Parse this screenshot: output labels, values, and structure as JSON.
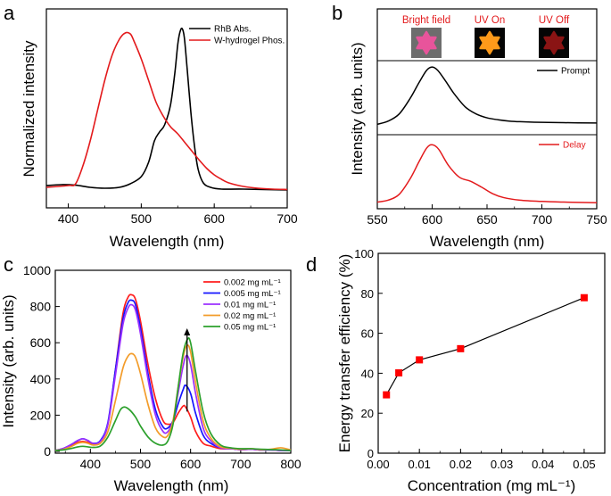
{
  "figure": {
    "panel_letters": [
      "a",
      "b",
      "c",
      "d"
    ]
  },
  "chart_data": [
    {
      "id": "a",
      "type": "line",
      "xlabel": "Wavelength (nm)",
      "ylabel": "Normalized intensity",
      "xlim": [
        370,
        700
      ],
      "ylim": [
        0,
        1.0
      ],
      "xticks": [
        400,
        500,
        600,
        700
      ],
      "show_yticks": false,
      "legend_position": "top-right",
      "series": [
        {
          "name": "RhB Abs.",
          "color": "#000000",
          "x": [
            370,
            390,
            410,
            430,
            450,
            470,
            485,
            500,
            510,
            518,
            525,
            532,
            540,
            546,
            550,
            553,
            556,
            559,
            563,
            568,
            573,
            578,
            585,
            595,
            610,
            640,
            700
          ],
          "y": [
            0.11,
            0.115,
            0.112,
            0.1,
            0.095,
            0.1,
            0.12,
            0.16,
            0.24,
            0.36,
            0.41,
            0.45,
            0.56,
            0.74,
            0.9,
            0.97,
            0.99,
            0.94,
            0.76,
            0.52,
            0.33,
            0.2,
            0.125,
            0.1,
            0.09,
            0.09,
            0.085
          ]
        },
        {
          "name": "W-hydrogel Phos.",
          "color": "#e31a1c",
          "x": [
            370,
            400,
            410,
            420,
            430,
            440,
            450,
            460,
            470,
            478,
            485,
            490,
            500,
            510,
            520,
            530,
            540,
            550,
            560,
            570,
            580,
            590,
            600,
            610,
            620,
            640,
            660,
            680,
            700
          ],
          "y": [
            0.1,
            0.11,
            0.12,
            0.22,
            0.36,
            0.53,
            0.7,
            0.84,
            0.93,
            0.965,
            0.96,
            0.92,
            0.82,
            0.7,
            0.58,
            0.5,
            0.44,
            0.4,
            0.35,
            0.3,
            0.25,
            0.205,
            0.17,
            0.145,
            0.125,
            0.105,
            0.095,
            0.09,
            0.088
          ]
        }
      ]
    },
    {
      "id": "b",
      "type": "line",
      "xlabel": "Wavelength (nm)",
      "ylabel": "Intensity (arb. units)",
      "xlim": [
        550,
        750
      ],
      "xticks": [
        550,
        600,
        650,
        700,
        750
      ],
      "show_yticks": false,
      "inset_labels": [
        "Bright field",
        "UV On",
        "UV Off"
      ],
      "inset_colors": [
        "#e8549b",
        "#ff9a1a",
        "#8a1414"
      ],
      "subplots": [
        {
          "name": "Prompt",
          "color": "#000000",
          "ylim": [
            0,
            1.0
          ],
          "x": [
            550,
            560,
            570,
            580,
            588,
            595,
            600,
            605,
            612,
            620,
            630,
            640,
            650,
            660,
            670,
            680,
            700,
            720,
            750
          ],
          "y": [
            0.05,
            0.1,
            0.21,
            0.45,
            0.69,
            0.88,
            0.93,
            0.88,
            0.72,
            0.52,
            0.32,
            0.21,
            0.15,
            0.12,
            0.1,
            0.09,
            0.08,
            0.075,
            0.07
          ]
        },
        {
          "name": "Delay",
          "color": "#e31a1c",
          "ylim": [
            0,
            1.0
          ],
          "x": [
            550,
            560,
            570,
            580,
            588,
            595,
            600,
            606,
            615,
            625,
            635,
            645,
            655,
            665,
            680,
            700,
            720,
            750
          ],
          "y": [
            0.02,
            0.05,
            0.14,
            0.38,
            0.64,
            0.85,
            0.9,
            0.83,
            0.58,
            0.4,
            0.34,
            0.25,
            0.15,
            0.09,
            0.05,
            0.03,
            0.02,
            0.01
          ]
        }
      ]
    },
    {
      "id": "c",
      "type": "line",
      "xlabel": "Wavelength (nm)",
      "ylabel": "Intensity (arb. units)",
      "xlim": [
        330,
        800
      ],
      "ylim": [
        0,
        1000
      ],
      "xticks": [
        400,
        500,
        600,
        700,
        800
      ],
      "yticks": [
        0,
        200,
        400,
        600,
        800,
        1000
      ],
      "legend_position": "top-right",
      "series": [
        {
          "name": "0.002 mg mL⁻¹",
          "color": "#ff1e1e",
          "x": [
            330,
            345,
            360,
            375,
            385,
            395,
            405,
            420,
            435,
            450,
            465,
            475,
            482,
            490,
            500,
            515,
            530,
            545,
            555,
            565,
            575,
            585,
            590,
            600,
            610,
            625,
            640,
            660,
            680,
            700,
            720,
            740,
            760,
            780,
            800
          ],
          "y": [
            5,
            15,
            30,
            50,
            55,
            50,
            40,
            55,
            150,
            450,
            760,
            850,
            865,
            840,
            720,
            480,
            290,
            170,
            150,
            160,
            210,
            250,
            245,
            190,
            110,
            45,
            30,
            15,
            15,
            10,
            12,
            8,
            10,
            5,
            5
          ]
        },
        {
          "name": "0.005 mg mL⁻¹",
          "color": "#1515ff",
          "x": [
            330,
            345,
            360,
            375,
            385,
            395,
            405,
            420,
            435,
            450,
            465,
            475,
            482,
            490,
            500,
            515,
            530,
            545,
            555,
            565,
            575,
            585,
            590,
            600,
            610,
            625,
            640,
            660,
            680,
            700,
            720,
            740,
            760,
            780,
            800
          ],
          "y": [
            5,
            15,
            35,
            60,
            70,
            60,
            45,
            60,
            160,
            450,
            730,
            820,
            835,
            810,
            680,
            430,
            230,
            135,
            130,
            170,
            260,
            340,
            365,
            320,
            210,
            90,
            45,
            20,
            15,
            10,
            12,
            8,
            8,
            5,
            5
          ]
        },
        {
          "name": "0.01 mg mL⁻¹",
          "color": "#9b30ff",
          "x": [
            330,
            345,
            360,
            375,
            385,
            395,
            405,
            420,
            435,
            450,
            465,
            475,
            482,
            490,
            500,
            515,
            530,
            545,
            555,
            565,
            575,
            585,
            592,
            600,
            610,
            625,
            640,
            660,
            680,
            700,
            720,
            740,
            760,
            780,
            800
          ],
          "y": [
            5,
            15,
            35,
            60,
            70,
            60,
            45,
            55,
            150,
            420,
            700,
            790,
            810,
            780,
            650,
            400,
            200,
            110,
            110,
            170,
            320,
            470,
            530,
            480,
            320,
            130,
            60,
            20,
            15,
            10,
            12,
            8,
            8,
            5,
            5
          ]
        },
        {
          "name": "0.02 mg mL⁻¹",
          "color": "#f39c2a",
          "x": [
            330,
            345,
            360,
            375,
            385,
            395,
            405,
            420,
            435,
            450,
            465,
            475,
            482,
            490,
            500,
            515,
            530,
            545,
            555,
            565,
            575,
            585,
            593,
            600,
            610,
            625,
            640,
            660,
            680,
            700,
            720,
            740,
            760,
            780,
            800
          ],
          "y": [
            5,
            10,
            25,
            45,
            50,
            45,
            35,
            45,
            110,
            280,
            460,
            525,
            540,
            520,
            430,
            260,
            130,
            80,
            90,
            170,
            350,
            520,
            585,
            550,
            380,
            170,
            75,
            25,
            18,
            12,
            15,
            10,
            12,
            20,
            8
          ]
        },
        {
          "name": "0.05 mg mL⁻¹",
          "color": "#2ca02c",
          "x": [
            330,
            345,
            360,
            375,
            385,
            395,
            405,
            420,
            435,
            450,
            460,
            468,
            478,
            490,
            500,
            515,
            530,
            545,
            555,
            565,
            575,
            585,
            594,
            600,
            610,
            625,
            640,
            660,
            680,
            700,
            720,
            740,
            760,
            780,
            800
          ],
          "y": [
            5,
            8,
            15,
            25,
            28,
            25,
            22,
            30,
            80,
            170,
            230,
            245,
            230,
            190,
            140,
            80,
            45,
            35,
            60,
            150,
            350,
            540,
            620,
            600,
            440,
            220,
            100,
            35,
            20,
            15,
            15,
            12,
            10,
            8,
            5
          ]
        }
      ],
      "annotation": {
        "type": "arrow",
        "x": 593,
        "y_from": 220,
        "y_to": 680,
        "note": "increasing concentration"
      }
    },
    {
      "id": "d",
      "type": "line",
      "markers": "square",
      "xlabel": "Concentration (mg mL⁻¹)",
      "ylabel": "Energy transfer efficiency (%)",
      "xlim": [
        0.0,
        0.055
      ],
      "ylim": [
        0,
        100
      ],
      "xticks": [
        0.0,
        0.01,
        0.02,
        0.03,
        0.04,
        0.05
      ],
      "xtick_labels": [
        "0.00",
        "0.01",
        "0.02",
        "0.03",
        "0.04",
        "0.05"
      ],
      "yticks": [
        0,
        20,
        40,
        60,
        80,
        100
      ],
      "line_color": "#000000",
      "marker_color": "#ff0000",
      "x": [
        0.002,
        0.005,
        0.01,
        0.02,
        0.05
      ],
      "y": [
        29.2,
        40.2,
        46.7,
        52.3,
        77.8
      ]
    }
  ]
}
